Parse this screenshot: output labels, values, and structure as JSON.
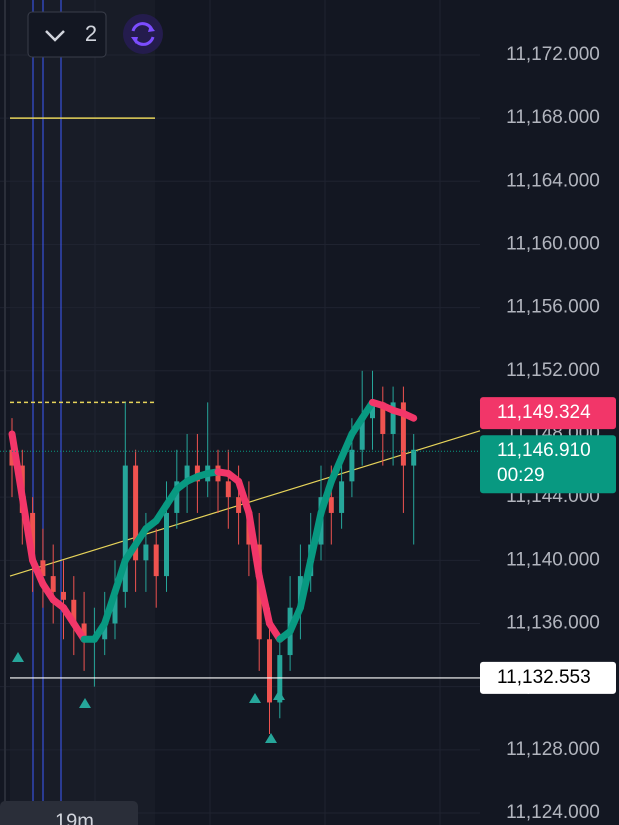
{
  "toolbar": {
    "count": "2"
  },
  "chart_data": {
    "type": "candlestick",
    "ylim": [
      11123.24,
      11175.48
    ],
    "yticks": [
      {
        "value": 11124,
        "label": "11,124.000"
      },
      {
        "value": 11128,
        "label": "11,128.000"
      },
      {
        "value": 11132,
        "label": "11,132.000"
      },
      {
        "value": 11136,
        "label": "11,136.000"
      },
      {
        "value": 11140,
        "label": "11,140.000"
      },
      {
        "value": 11144,
        "label": "11,144.000"
      },
      {
        "value": 11148,
        "label": "11,148.000"
      },
      {
        "value": 11152,
        "label": "11,152.000"
      },
      {
        "value": 11156,
        "label": "11,156.000"
      },
      {
        "value": 11160,
        "label": "11,160.000"
      },
      {
        "value": 11164,
        "label": "11,164.000"
      },
      {
        "value": 11168,
        "label": "11,168.000"
      },
      {
        "value": 11172,
        "label": "11,172.000"
      }
    ],
    "grid": true,
    "up_color": "#26a69a",
    "down_color": "#ef5350",
    "open": [
      11147,
      11146,
      11143,
      11140,
      11139,
      11138,
      11137.5,
      11136,
      11135,
      11135,
      11136,
      11138,
      11146,
      11140,
      11141,
      11139,
      11143,
      11145,
      11146,
      11145,
      11146,
      11145,
      11144,
      11143,
      11141,
      11135,
      11131,
      11134,
      11137,
      11139,
      11141,
      11144,
      11143,
      11145,
      11147,
      11149,
      11150,
      11148,
      11150,
      11146
    ],
    "high": [
      11149,
      11147,
      11144,
      11142,
      11141,
      11140,
      11139,
      11138,
      11137,
      11138,
      11140,
      11150,
      11147,
      11143,
      11142,
      11145,
      11147,
      11148,
      11148,
      11150,
      11147,
      11147,
      11146,
      11145,
      11143,
      11137,
      11135,
      11139,
      11141,
      11143,
      11146,
      11146,
      11147,
      11149,
      11152,
      11152,
      11151,
      11151,
      11151,
      11148
    ],
    "low": [
      11144,
      11141,
      11138,
      11137,
      11136,
      11135,
      11134,
      11133,
      11132,
      11134,
      11135,
      11137,
      11138,
      11138,
      11137,
      11138,
      11142,
      11143,
      11143,
      11144,
      11143,
      11142,
      11141,
      11139,
      11133,
      11129,
      11130,
      11133,
      11135,
      11138,
      11140,
      11141,
      11142,
      11144,
      11146,
      11147,
      11146,
      11146,
      11143,
      11141
    ],
    "close": [
      11146,
      11143,
      11140,
      11139,
      11138,
      11137.5,
      11136,
      11135,
      11135,
      11136,
      11138,
      11146,
      11140,
      11141,
      11139,
      11143,
      11145,
      11146,
      11145,
      11146,
      11145,
      11144,
      11143,
      11141,
      11135,
      11131,
      11134,
      11137,
      11139,
      11141,
      11144,
      11143,
      11145,
      11147,
      11149,
      11150,
      11148,
      11150,
      11146,
      11147
    ],
    "moving_average": {
      "rise_color": "#089981",
      "fall_color": "#f23669",
      "values": [
        11148,
        11144,
        11140,
        11138.5,
        11137.5,
        11137,
        11136,
        11135,
        11135,
        11136,
        11138,
        11140,
        11141,
        11142,
        11142.5,
        11143.5,
        11144.5,
        11145,
        11145.3,
        11145.5,
        11145.6,
        11145.5,
        11145,
        11143,
        11139,
        11136,
        11135,
        11135.5,
        11137,
        11140,
        11143,
        11145,
        11146.5,
        11148,
        11149,
        11150,
        11149.8,
        11149.5,
        11149.3,
        11149
      ]
    },
    "trendline": {
      "values": [
        11139,
        11148.2
      ],
      "color": "#e6d35a"
    },
    "levels": [
      {
        "value": 11168,
        "color": "#e6d35a",
        "style": "solid"
      },
      {
        "value": 11150,
        "color": "#e6d35a",
        "style": "dashed"
      }
    ],
    "price_labels": [
      {
        "value": 11149.324,
        "label": "11,149.324",
        "color": "#f23669",
        "text_color": "#ffffff"
      },
      {
        "value": 11146.91,
        "label": "11,146.910",
        "timer": "00:29",
        "color": "#089981",
        "text_color": "#ffffff"
      },
      {
        "value": 11132.553,
        "label": "11,132.553",
        "color": "#ffffff",
        "text_color": "#000000"
      }
    ],
    "interval": "19m"
  }
}
